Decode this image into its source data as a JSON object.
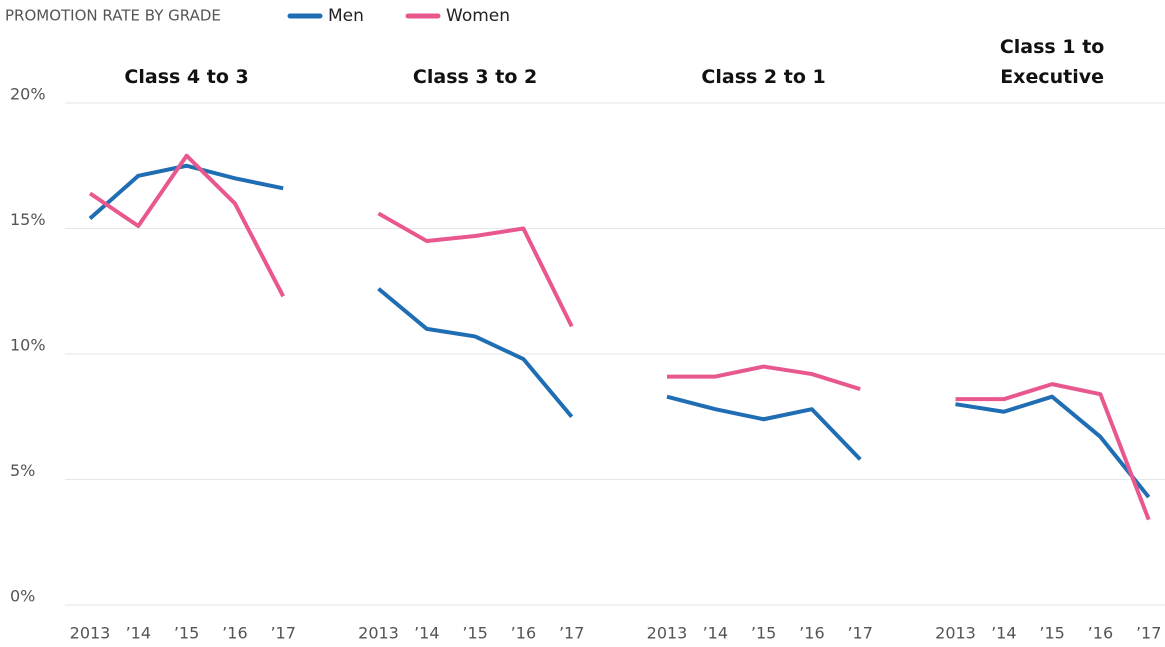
{
  "legend_title": "PROMOTION RATE BY GRADE",
  "series": [
    {
      "name": "Men",
      "color": "#1f6db3"
    },
    {
      "name": "Women",
      "color": "#e9578f"
    }
  ],
  "ylim": [
    0,
    20
  ],
  "yticks": [
    {
      "value": 0,
      "label": "0%"
    },
    {
      "value": 5,
      "label": "5%"
    },
    {
      "value": 10,
      "label": "10%"
    },
    {
      "value": 15,
      "label": "15%"
    },
    {
      "value": 20,
      "label": "20%"
    }
  ],
  "grid": true,
  "chart_data": [
    {
      "type": "line",
      "title": "Class 4 to 3",
      "categories": [
        "2013",
        "’14",
        "’15",
        "’16",
        "’17"
      ],
      "series": [
        {
          "values": [
            15.4,
            17.1,
            17.5,
            17.0,
            16.6
          ]
        },
        {
          "values": [
            16.4,
            15.1,
            17.9,
            16.0,
            12.3
          ]
        }
      ]
    },
    {
      "type": "line",
      "title": "Class 3 to 2",
      "categories": [
        "2013",
        "’14",
        "’15",
        "’16",
        "’17"
      ],
      "series": [
        {
          "values": [
            12.6,
            11.0,
            10.7,
            9.8,
            7.5
          ]
        },
        {
          "values": [
            15.6,
            14.5,
            14.7,
            15.0,
            11.1
          ]
        }
      ]
    },
    {
      "type": "line",
      "title": "Class 2 to 1",
      "categories": [
        "2013",
        "’14",
        "’15",
        "’16",
        "’17"
      ],
      "series": [
        {
          "values": [
            8.3,
            7.8,
            7.4,
            7.8,
            5.8
          ]
        },
        {
          "values": [
            9.1,
            9.1,
            9.5,
            9.2,
            8.6
          ]
        }
      ]
    },
    {
      "type": "line",
      "title": "Class 1 to Executive",
      "categories": [
        "2013",
        "’14",
        "’15",
        "’16",
        "’17"
      ],
      "series": [
        {
          "values": [
            8.0,
            7.7,
            8.3,
            6.7,
            4.3
          ]
        },
        {
          "values": [
            8.2,
            8.2,
            8.8,
            8.4,
            3.4
          ]
        }
      ]
    }
  ]
}
